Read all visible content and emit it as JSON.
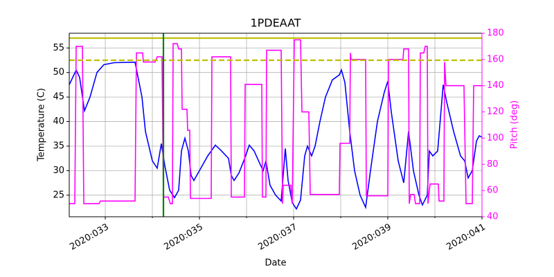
{
  "chart_data": {
    "type": "line",
    "title": "1PDEAAT",
    "xlabel": "Date",
    "ylabel": "Temperature (C)",
    "y2label": "Pitch (deg)",
    "xlim": [
      32.235,
      41
    ],
    "ylim": [
      20.6,
      58.0
    ],
    "y2lim": [
      40,
      180
    ],
    "xticks": [
      {
        "value": 33,
        "label": "2020:033"
      },
      {
        "value": 35,
        "label": "2020:035"
      },
      {
        "value": 37,
        "label": "2020:037"
      },
      {
        "value": 39,
        "label": "2020:039"
      },
      {
        "value": 41,
        "label": "2020:041"
      }
    ],
    "xminorticks": [
      34,
      36,
      38,
      40
    ],
    "yticks": [
      25,
      30,
      35,
      40,
      45,
      50,
      55
    ],
    "y2ticks": [
      40,
      60,
      80,
      100,
      120,
      140,
      160,
      180
    ],
    "grid": true,
    "y2color": "#ff00ff",
    "series": [
      {
        "name": "Temperature",
        "color": "#0000ff",
        "axis": "y",
        "x": [
          32.235,
          32.382,
          32.456,
          32.559,
          32.676,
          32.823,
          32.97,
          33.191,
          33.632,
          33.779,
          33.853,
          34.0,
          34.103,
          34.191,
          34.264,
          34.367,
          34.47,
          34.559,
          34.617,
          34.691,
          34.764,
          34.823,
          34.882,
          35.029,
          35.176,
          35.338,
          35.47,
          35.617,
          35.676,
          35.735,
          35.838,
          35.941,
          36.059,
          36.162,
          36.279,
          36.353,
          36.411,
          36.5,
          36.617,
          36.735,
          36.823,
          36.882,
          36.97,
          37.059,
          37.147,
          37.235,
          37.294,
          37.382,
          37.456,
          37.559,
          37.676,
          37.823,
          37.97,
          38.015,
          38.088,
          38.191,
          38.294,
          38.411,
          38.529,
          38.632,
          38.779,
          38.926,
          39.0,
          39.073,
          39.22,
          39.338,
          39.441,
          39.544,
          39.662,
          39.735,
          39.838,
          39.882,
          39.956,
          40.059,
          40.176,
          40.25,
          40.397,
          40.544,
          40.632,
          40.706,
          40.794,
          40.882,
          40.941,
          41.0
        ],
        "values": [
          47.5,
          50.5,
          49,
          42.2,
          45,
          50,
          51.6,
          52,
          52.1,
          45,
          38,
          32,
          30.5,
          35.5,
          31,
          26,
          24.5,
          26,
          34,
          36.6,
          34,
          29,
          28,
          30.5,
          33,
          35.2,
          34,
          32.5,
          29,
          28,
          29.5,
          32,
          35.2,
          34,
          31.5,
          30,
          32,
          27,
          25,
          23.8,
          34.5,
          28,
          23.5,
          22.2,
          24,
          33,
          35,
          33,
          35,
          40,
          45,
          48.5,
          49.5,
          50.5,
          48,
          38,
          30,
          25,
          22.5,
          30,
          40,
          46,
          48.2,
          42,
          32,
          27.5,
          38,
          30,
          25,
          23,
          25,
          34,
          33,
          34,
          47.5,
          44,
          38,
          33,
          32,
          28.5,
          30,
          36,
          37.1,
          36.8
        ]
      },
      {
        "name": "Pitch",
        "color": "#ff00ff",
        "axis": "y2",
        "x": [
          32.235,
          32.353,
          32.382,
          32.514,
          32.544,
          32.867,
          32.897,
          33.632,
          33.661,
          33.794,
          33.809,
          34.059,
          34.103,
          34.206,
          34.235,
          34.338,
          34.382,
          34.426,
          34.441,
          34.529,
          34.559,
          34.617,
          34.632,
          34.735,
          34.75,
          34.794,
          34.809,
          35.25,
          35.264,
          35.662,
          35.676,
          35.956,
          35.97,
          36.323,
          36.338,
          36.411,
          36.426,
          36.735,
          36.764,
          36.779,
          36.941,
          36.97,
          37.015,
          37.147,
          37.176,
          37.323,
          37.353,
          37.97,
          37.985,
          38.191,
          38.206,
          38.22,
          38.529,
          38.544,
          39.0,
          39.015,
          39.323,
          39.338,
          39.441,
          39.456,
          39.485,
          39.559,
          39.588,
          39.676,
          39.691,
          39.765,
          39.794,
          39.838,
          39.853,
          39.897,
          40.073,
          40.088,
          40.191,
          40.206,
          40.235,
          40.618,
          40.662,
          40.794,
          40.824,
          41.0
        ],
        "values": [
          50,
          50,
          170,
          170,
          50,
          50,
          52,
          52,
          165,
          165,
          158,
          158,
          162,
          162,
          55,
          55,
          50,
          50,
          172,
          172,
          168,
          168,
          122,
          122,
          106,
          106,
          54,
          54,
          162,
          162,
          55,
          55,
          141,
          141,
          55,
          55,
          167,
          167,
          50,
          64,
          64,
          50,
          175,
          175,
          120,
          120,
          57,
          57,
          96,
          96,
          165,
          160,
          160,
          56,
          56,
          160,
          160,
          168,
          168,
          50,
          57,
          57,
          50,
          50,
          165,
          165,
          170,
          170,
          50,
          65,
          65,
          52,
          52,
          158,
          140,
          140,
          50,
          50,
          140,
          140
        ]
      }
    ],
    "hlines": [
      {
        "value": 57,
        "color": "#bfbf00",
        "style": "solid"
      },
      {
        "value": 52.5,
        "color": "#bfbf00",
        "style": "dashed"
      }
    ],
    "vlines": [
      {
        "value": 34.235,
        "color": "#008000",
        "style": "solid"
      }
    ]
  }
}
